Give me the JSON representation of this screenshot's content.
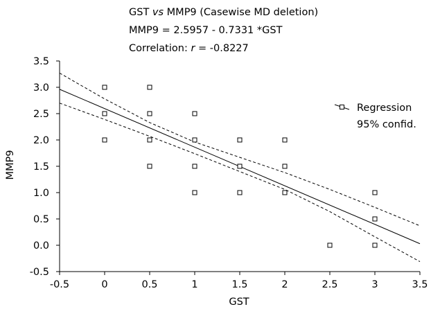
{
  "chart_data": {
    "type": "scatter",
    "title": {
      "prefix": "GST ",
      "vs": "vs",
      "suffix": " MMP9 (Casewise MD deletion)",
      "equation": "MMP9 = 2.5957 - 0.7331 *GST",
      "corr_prefix": "Correlation: ",
      "corr_r": "r",
      "corr_suffix": " = -0.8227"
    },
    "xlabel": "GST",
    "ylabel": "MMP9",
    "xlim": [
      -0.5,
      3.5
    ],
    "ylim": [
      -0.5,
      3.5
    ],
    "xticks": [
      "-0.5",
      "0",
      "0.5",
      "1",
      "1.5",
      "2",
      "2.5",
      "3",
      "3.5"
    ],
    "yticks": [
      "-0.5",
      "0.0",
      "0.5",
      "1.0",
      "1.5",
      "2.0",
      "2.5",
      "3.0",
      "3.5"
    ],
    "grid": false,
    "legend": {
      "placement": "top-right",
      "entries": [
        "Regression",
        "95% confid."
      ]
    },
    "regression": {
      "intercept": 2.5957,
      "slope": -0.7331
    },
    "points": [
      {
        "x": 0,
        "y": 3.0
      },
      {
        "x": 0,
        "y": 2.5
      },
      {
        "x": 0,
        "y": 2.0
      },
      {
        "x": 0.5,
        "y": 3.0
      },
      {
        "x": 0.5,
        "y": 2.5
      },
      {
        "x": 0.5,
        "y": 2.0
      },
      {
        "x": 0.5,
        "y": 1.5
      },
      {
        "x": 1,
        "y": 2.5
      },
      {
        "x": 1,
        "y": 2.0
      },
      {
        "x": 1,
        "y": 1.5
      },
      {
        "x": 1,
        "y": 1.0
      },
      {
        "x": 1.5,
        "y": 2.0
      },
      {
        "x": 1.5,
        "y": 1.5
      },
      {
        "x": 1.5,
        "y": 1.0
      },
      {
        "x": 2,
        "y": 2.0
      },
      {
        "x": 2,
        "y": 1.5
      },
      {
        "x": 2,
        "y": 1.0
      },
      {
        "x": 2.5,
        "y": 0.0
      },
      {
        "x": 3,
        "y": 1.0
      },
      {
        "x": 3,
        "y": 0.5
      },
      {
        "x": 3,
        "y": 0.0
      }
    ],
    "confidence_band": {
      "upper": [
        [
          -0.5,
          3.27
        ],
        [
          0.0,
          2.78
        ],
        [
          0.5,
          2.33
        ],
        [
          1.0,
          1.96
        ],
        [
          1.5,
          1.67
        ],
        [
          2.0,
          1.38
        ],
        [
          2.5,
          1.06
        ],
        [
          3.0,
          0.72
        ],
        [
          3.5,
          0.37
        ]
      ],
      "lower": [
        [
          -0.5,
          2.7
        ],
        [
          0.0,
          2.39
        ],
        [
          0.5,
          2.07
        ],
        [
          1.0,
          1.74
        ],
        [
          1.5,
          1.4
        ],
        [
          2.0,
          1.06
        ],
        [
          2.5,
          0.64
        ],
        [
          3.0,
          0.16
        ],
        [
          3.5,
          -0.31
        ]
      ]
    }
  }
}
